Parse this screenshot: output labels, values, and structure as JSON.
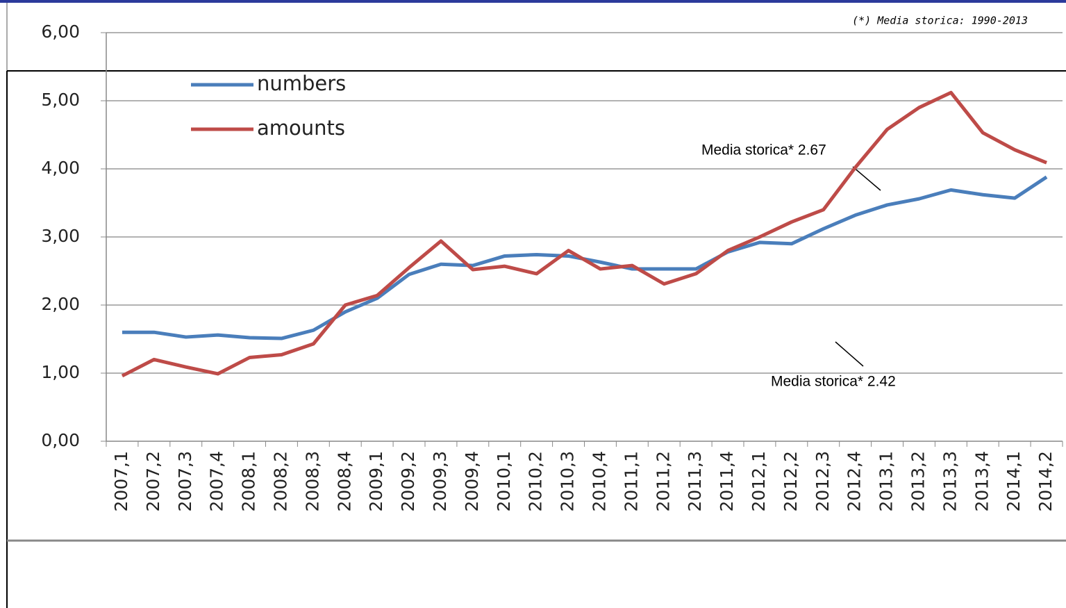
{
  "chart_data": {
    "type": "line",
    "note": "(*) Media storica: 1990-2013",
    "categories": [
      "2007,1",
      "2007,2",
      "2007,3",
      "2007,4",
      "2008,1",
      "2008,2",
      "2008,3",
      "2008,4",
      "2009,1",
      "2009,2",
      "2009,3",
      "2009,4",
      "2010,1",
      "2010,2",
      "2010,3",
      "2010,4",
      "2011,1",
      "2011,2",
      "2011,3",
      "2011,4",
      "2012,1",
      "2012,2",
      "2012,3",
      "2012,4",
      "2013,1",
      "2013,2",
      "2013,3",
      "2013,4",
      "2014,1",
      "2014,2"
    ],
    "series": [
      {
        "name": "numbers",
        "color": "#4a7ebb",
        "values": [
          1.6,
          1.6,
          1.53,
          1.56,
          1.52,
          1.51,
          1.63,
          1.9,
          2.1,
          2.45,
          2.6,
          2.58,
          2.72,
          2.74,
          2.72,
          2.63,
          2.53,
          2.53,
          2.53,
          2.78,
          2.92,
          2.9,
          3.12,
          3.32,
          3.47,
          3.56,
          3.69,
          3.62,
          3.57,
          3.88
        ]
      },
      {
        "name": "amounts",
        "color": "#be4b48",
        "values": [
          0.96,
          1.2,
          1.09,
          0.99,
          1.23,
          1.27,
          1.43,
          2.0,
          2.14,
          2.55,
          2.94,
          2.52,
          2.57,
          2.46,
          2.8,
          2.53,
          2.58,
          2.31,
          2.46,
          2.8,
          3.0,
          3.22,
          3.4,
          4.02,
          4.58,
          4.9,
          5.12,
          4.53,
          4.28,
          4.09
        ]
      }
    ],
    "ylim": [
      0,
      6
    ],
    "yticks": [
      {
        "value": 0,
        "label": "0,00"
      },
      {
        "value": 1,
        "label": "1,00"
      },
      {
        "value": 2,
        "label": "2,00"
      },
      {
        "value": 3,
        "label": "3,00"
      },
      {
        "value": 4,
        "label": "4,00"
      },
      {
        "value": 5,
        "label": "5,00"
      },
      {
        "value": 6,
        "label": "6,00"
      }
    ],
    "grid": true,
    "legend": "top-left",
    "annotations": [
      {
        "text": "Media storica* 2.67"
      },
      {
        "text": "Media storica* 2.42"
      }
    ]
  }
}
